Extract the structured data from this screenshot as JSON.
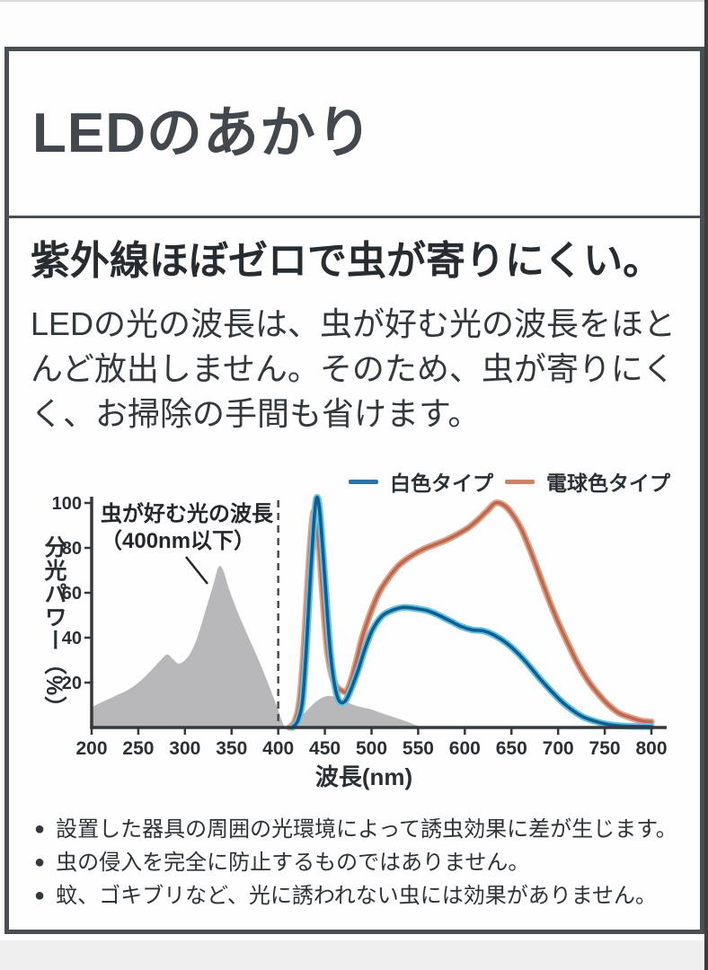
{
  "page": {
    "title": "LEDのあかり",
    "section": {
      "heading": "紫外線ほぼゼロで虫が寄りにくい。",
      "body": "LEDの光の波長は、虫が好む光の波長をほとんど放出しません。そのため、虫が寄りにくく、お掃除の手間も省けます。",
      "note_bullet": "●",
      "notes": [
        "設置した器具の周囲の光環境によって誘虫効果に差が生じます。",
        "虫の侵入を完全に防止するものではありません。",
        "蚊、ゴキブリなど、光に誘われない虫には効果がありません。"
      ]
    }
  },
  "chart_data": {
    "type": "line",
    "title": "",
    "xlabel": "波長(nm)",
    "ylabel": "分光パワー（%）",
    "xlim": [
      200,
      800
    ],
    "ylim": [
      0,
      105
    ],
    "grid": false,
    "legend_position": "top-right",
    "x_ticks": [
      200,
      250,
      300,
      350,
      400,
      450,
      500,
      550,
      600,
      650,
      700,
      750,
      800
    ],
    "y_ticks": [
      20,
      40,
      60,
      80,
      100
    ],
    "divider_nm": 400,
    "axis_color": "#35393d",
    "annotation": {
      "text_line1": "虫が好む光の波長",
      "text_line2": "（400nm以下）",
      "points_to_nm": 320
    },
    "legend": [
      {
        "label": "白色タイプ",
        "color": "#2a72a8"
      },
      {
        "label": "電球色タイプ",
        "color": "#cc8267"
      }
    ],
    "series": [
      {
        "name": "insect-preferred-uv-region",
        "type": "area",
        "color": "#b8b8bb",
        "points": [
          [
            200,
            9
          ],
          [
            212,
            11.5
          ],
          [
            225,
            14
          ],
          [
            240,
            17
          ],
          [
            253,
            21
          ],
          [
            265,
            26
          ],
          [
            274,
            30
          ],
          [
            281,
            32.5
          ],
          [
            287,
            30.5
          ],
          [
            293,
            28.5
          ],
          [
            300,
            30
          ],
          [
            307,
            34
          ],
          [
            314,
            41
          ],
          [
            322,
            52
          ],
          [
            330,
            63
          ],
          [
            336,
            71.5
          ],
          [
            341,
            70
          ],
          [
            347,
            62
          ],
          [
            354,
            54
          ],
          [
            362,
            46
          ],
          [
            370,
            38.5
          ],
          [
            378,
            31
          ],
          [
            386,
            23
          ],
          [
            393,
            15.5
          ],
          [
            399,
            9
          ],
          [
            404,
            3
          ],
          [
            407,
            0
          ]
        ]
      },
      {
        "name": "insect-response-tail",
        "type": "area",
        "color": "#b8b8bb",
        "points": [
          [
            411,
            0
          ],
          [
            418,
            2.5
          ],
          [
            426,
            5.5
          ],
          [
            434,
            9
          ],
          [
            442,
            12
          ],
          [
            450,
            13.8
          ],
          [
            457,
            14
          ],
          [
            464,
            13
          ],
          [
            472,
            11.5
          ],
          [
            481,
            10
          ],
          [
            490,
            9
          ],
          [
            500,
            8
          ],
          [
            510,
            6.5
          ],
          [
            521,
            5
          ],
          [
            532,
            3.5
          ],
          [
            543,
            1.8
          ],
          [
            552,
            0.5
          ],
          [
            558,
            0
          ]
        ]
      },
      {
        "name": "電球色タイプ",
        "type": "line",
        "halo": "#e0a48d",
        "color": "#bd6950",
        "points": [
          [
            412,
            0
          ],
          [
            418,
            3
          ],
          [
            423,
            12
          ],
          [
            427,
            32
          ],
          [
            431,
            60
          ],
          [
            435,
            85
          ],
          [
            438,
            96
          ],
          [
            441,
            92
          ],
          [
            445,
            74
          ],
          [
            449,
            51
          ],
          [
            453,
            33
          ],
          [
            458,
            22.5
          ],
          [
            463,
            18
          ],
          [
            468,
            16.5
          ],
          [
            473,
            16
          ],
          [
            478,
            21
          ],
          [
            484,
            30
          ],
          [
            490,
            40
          ],
          [
            498,
            50
          ],
          [
            508,
            60
          ],
          [
            518,
            66.5
          ],
          [
            530,
            72.5
          ],
          [
            543,
            76.5
          ],
          [
            556,
            79.5
          ],
          [
            568,
            81.5
          ],
          [
            580,
            83.5
          ],
          [
            592,
            86
          ],
          [
            604,
            89
          ],
          [
            614,
            92.5
          ],
          [
            624,
            96.5
          ],
          [
            633,
            100
          ],
          [
            642,
            99
          ],
          [
            651,
            95
          ],
          [
            661,
            88
          ],
          [
            671,
            78
          ],
          [
            681,
            67
          ],
          [
            691,
            56
          ],
          [
            701,
            46
          ],
          [
            711,
            37
          ],
          [
            721,
            28.5
          ],
          [
            731,
            21.5
          ],
          [
            741,
            16
          ],
          [
            753,
            10.5
          ],
          [
            765,
            6.5
          ],
          [
            777,
            4.5
          ],
          [
            789,
            3
          ],
          [
            800,
            2.5
          ]
        ]
      },
      {
        "name": "白色タイプ",
        "type": "line",
        "halo": "#5fc4e6",
        "color": "#135c8d",
        "points": [
          [
            415,
            0
          ],
          [
            421,
            3
          ],
          [
            426,
            12
          ],
          [
            430,
            34
          ],
          [
            434,
            64
          ],
          [
            438,
            90
          ],
          [
            441,
            102
          ],
          [
            444,
            98
          ],
          [
            448,
            78
          ],
          [
            452,
            54
          ],
          [
            456,
            33
          ],
          [
            460,
            20
          ],
          [
            464,
            13
          ],
          [
            468,
            11
          ],
          [
            473,
            12.5
          ],
          [
            479,
            18
          ],
          [
            486,
            26
          ],
          [
            493,
            35
          ],
          [
            501,
            43.5
          ],
          [
            511,
            49.5
          ],
          [
            521,
            52
          ],
          [
            534,
            53.5
          ],
          [
            547,
            53
          ],
          [
            560,
            52
          ],
          [
            572,
            50
          ],
          [
            584,
            47.5
          ],
          [
            596,
            45
          ],
          [
            608,
            43.5
          ],
          [
            620,
            43
          ],
          [
            632,
            41
          ],
          [
            645,
            37.5
          ],
          [
            657,
            33
          ],
          [
            668,
            28
          ],
          [
            680,
            22
          ],
          [
            692,
            16.5
          ],
          [
            704,
            11.5
          ],
          [
            716,
            7.5
          ],
          [
            728,
            4.5
          ],
          [
            742,
            2.5
          ],
          [
            756,
            1.2
          ],
          [
            772,
            0.6
          ],
          [
            800,
            0.4
          ]
        ]
      }
    ]
  }
}
